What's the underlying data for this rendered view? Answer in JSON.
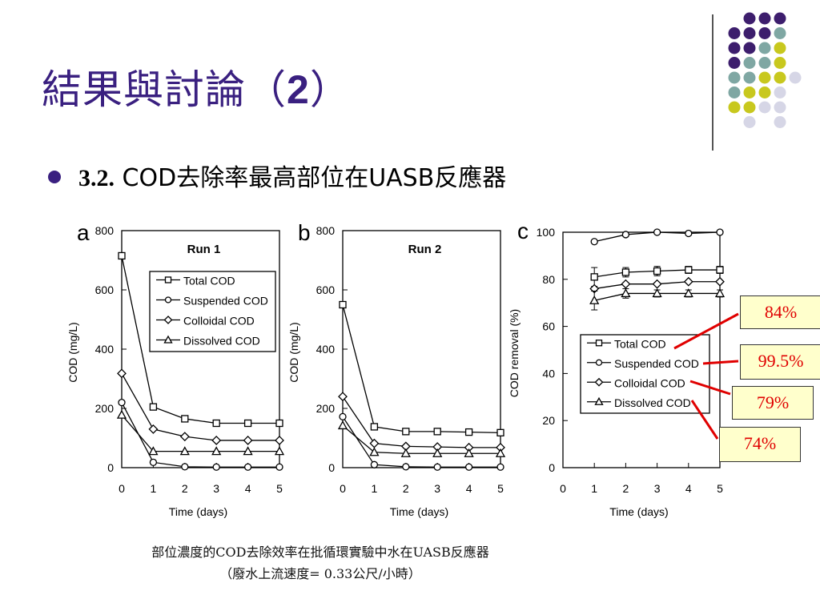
{
  "slide": {
    "title_text": "結果與討論（",
    "title_num": "2",
    "title_end": "）",
    "bullet_num": "3.2.",
    "bullet_text": " COD去除率最高部位在UASB反應器"
  },
  "decor": {
    "dot_colors": [
      "#3d1e6d",
      "#7fa7a3",
      "#c8c81e",
      "#d6d6e6"
    ]
  },
  "caption": {
    "line1": "部位濃度的COD去除效率在批循環實驗中水在UASB反應器",
    "line2": "（廢水上流速度= 0.33公尺/小時）"
  },
  "callouts": {
    "total": "84%",
    "suspended": "99.5%",
    "colloidal": "79%",
    "dissolved": "74%"
  },
  "chart_data": [
    {
      "type": "line",
      "panel": "a",
      "title": "Run 1",
      "xlabel": "Time (days)",
      "ylabel": "COD (mg/L)",
      "xlim": [
        0,
        5
      ],
      "ylim": [
        0,
        800
      ],
      "xticks": [
        0,
        1,
        2,
        3,
        4,
        5
      ],
      "yticks": [
        0,
        200,
        400,
        600,
        800
      ],
      "x": [
        0,
        1,
        2,
        3,
        4,
        5
      ],
      "legend_position": "upper-right",
      "series": [
        {
          "name": "Total COD",
          "marker": "square",
          "values": [
            715,
            205,
            165,
            150,
            150,
            150
          ]
        },
        {
          "name": "Suspended COD",
          "marker": "circle",
          "values": [
            220,
            18,
            3,
            2,
            2,
            2
          ]
        },
        {
          "name": "Colloidal COD",
          "marker": "diamond",
          "values": [
            318,
            130,
            105,
            92,
            92,
            92
          ]
        },
        {
          "name": "Dissolved COD",
          "marker": "triangle",
          "values": [
            178,
            55,
            55,
            55,
            55,
            55
          ]
        }
      ]
    },
    {
      "type": "line",
      "panel": "b",
      "title": "Run 2",
      "xlabel": "Time (days)",
      "ylabel": "COD (mg/L)",
      "xlim": [
        0,
        5
      ],
      "ylim": [
        0,
        800
      ],
      "xticks": [
        0,
        1,
        2,
        3,
        4,
        5
      ],
      "yticks": [
        0,
        200,
        400,
        600,
        800
      ],
      "x": [
        0,
        1,
        2,
        3,
        4,
        5
      ],
      "series": [
        {
          "name": "Total COD",
          "marker": "square",
          "values": [
            550,
            138,
            122,
            122,
            120,
            118
          ]
        },
        {
          "name": "Suspended COD",
          "marker": "circle",
          "values": [
            172,
            10,
            3,
            2,
            2,
            2
          ]
        },
        {
          "name": "Colloidal COD",
          "marker": "diamond",
          "values": [
            240,
            82,
            72,
            70,
            68,
            68
          ]
        },
        {
          "name": "Dissolved COD",
          "marker": "triangle",
          "values": [
            142,
            52,
            48,
            48,
            48,
            48
          ]
        }
      ]
    },
    {
      "type": "line",
      "panel": "c",
      "xlabel": "Time (days)",
      "ylabel": "COD removal (%)",
      "xlim": [
        0,
        5
      ],
      "ylim": [
        0,
        100
      ],
      "xticks": [
        0,
        1,
        2,
        3,
        4,
        5
      ],
      "yticks": [
        0,
        20,
        40,
        60,
        80,
        100
      ],
      "x": [
        1,
        2,
        3,
        4,
        5
      ],
      "legend_position": "lower-right",
      "series": [
        {
          "name": "Total COD",
          "marker": "square",
          "values": [
            81,
            83,
            83.5,
            84,
            84
          ],
          "errors": [
            4,
            2,
            2,
            1.5,
            1.5
          ]
        },
        {
          "name": "Suspended COD",
          "marker": "circle",
          "values": [
            96,
            99,
            100,
            99.5,
            100
          ]
        },
        {
          "name": "Colloidal COD",
          "marker": "diamond",
          "values": [
            76,
            78,
            78,
            79,
            79
          ]
        },
        {
          "name": "Dissolved COD",
          "marker": "triangle",
          "values": [
            71,
            74,
            74,
            74,
            74
          ],
          "errors": [
            4,
            2,
            1.5,
            1.5,
            1.5
          ]
        }
      ]
    }
  ]
}
